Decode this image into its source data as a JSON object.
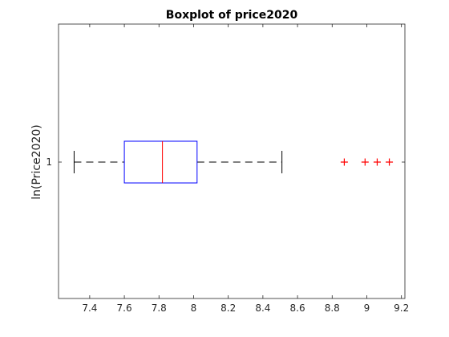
{
  "chart_data": {
    "type": "boxplot",
    "orientation": "horizontal",
    "title": "Boxplot of price2020",
    "xlabel": "",
    "ylabel": "ln(Price2020)",
    "categories": [
      "1"
    ],
    "xlim": [
      7.22,
      9.22
    ],
    "x_ticks": [
      "7.4",
      "7.6",
      "7.8",
      "8",
      "8.2",
      "8.4",
      "8.6",
      "8.8",
      "9",
      "9.2"
    ],
    "grid": false,
    "box": {
      "whisker_low": 7.31,
      "q1": 7.6,
      "median": 7.82,
      "q3": 8.02,
      "whisker_high": 8.51
    },
    "outliers": [
      8.87,
      8.99,
      9.06,
      9.13
    ],
    "colors": {
      "box": "#0000ff",
      "median": "#ff0000",
      "whisker": "#000000",
      "outlier": "#ff0000",
      "axes": "#262626"
    }
  }
}
